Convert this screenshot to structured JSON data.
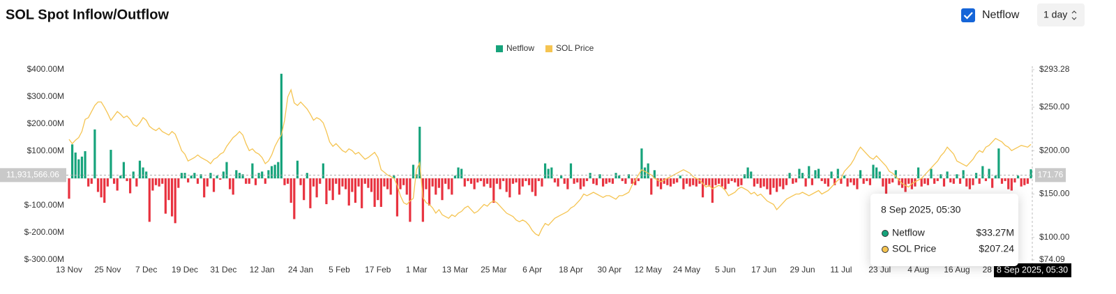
{
  "chart_data": {
    "type": "bar",
    "title": "SOL Spot Inflow/Outflow",
    "categories": [
      "13 Nov",
      null,
      null,
      null,
      null,
      null,
      null,
      null,
      null,
      null,
      null,
      null,
      "25 Nov",
      null,
      null,
      null,
      null,
      null,
      null,
      null,
      null,
      null,
      null,
      null,
      "7 Dec",
      null,
      null,
      null,
      null,
      null,
      null,
      null,
      null,
      null,
      null,
      null,
      "19 Dec",
      null,
      null,
      null,
      null,
      null,
      null,
      null,
      null,
      null,
      null,
      null,
      "31 Dec",
      null,
      null,
      null,
      null,
      null,
      null,
      null,
      null,
      null,
      null,
      null,
      "12 Jan",
      null,
      null,
      null,
      null,
      null,
      null,
      null,
      null,
      null,
      null,
      null,
      "24 Jan",
      null,
      null,
      null,
      null,
      null,
      null,
      null,
      null,
      null,
      null,
      null,
      "5 Feb",
      null,
      null,
      null,
      null,
      null,
      null,
      null,
      null,
      null,
      null,
      null,
      "17 Feb",
      null,
      null,
      null,
      null,
      null,
      null,
      null,
      null,
      null,
      null,
      null,
      "1 Mar",
      null,
      null,
      null,
      null,
      null,
      null,
      null,
      null,
      null,
      null,
      null,
      "13 Mar",
      null,
      null,
      null,
      null,
      null,
      null,
      null,
      null,
      null,
      null,
      null,
      "25 Mar",
      null,
      null,
      null,
      null,
      null,
      null,
      null,
      null,
      null,
      null,
      null,
      "6 Apr",
      null,
      null,
      null,
      null,
      null,
      null,
      null,
      null,
      null,
      null,
      null,
      "18 Apr",
      null,
      null,
      null,
      null,
      null,
      null,
      null,
      null,
      null,
      null,
      null,
      "30 Apr",
      null,
      null,
      null,
      null,
      null,
      null,
      null,
      null,
      null,
      null,
      null,
      "12 May",
      null,
      null,
      null,
      null,
      null,
      null,
      null,
      null,
      null,
      null,
      null,
      "24 May",
      null,
      null,
      null,
      null,
      null,
      null,
      null,
      null,
      null,
      null,
      null,
      "5 Jun",
      null,
      null,
      null,
      null,
      null,
      null,
      null,
      null,
      null,
      null,
      null,
      "17 Jun",
      null,
      null,
      null,
      null,
      null,
      null,
      null,
      null,
      null,
      null,
      null,
      "29 Jun",
      null,
      null,
      null,
      null,
      null,
      null,
      null,
      null,
      null,
      null,
      null,
      "11 Jul",
      null,
      null,
      null,
      null,
      null,
      null,
      null,
      null,
      null,
      null,
      null,
      "23 Jul",
      null,
      null,
      null,
      null,
      null,
      null,
      null,
      null,
      null,
      null,
      null,
      "4 Aug",
      null,
      null,
      null,
      null,
      null,
      null,
      null,
      null,
      null,
      null,
      null,
      "16 Aug",
      null,
      null,
      null,
      null,
      null,
      null,
      null,
      null,
      null,
      null,
      null,
      "28 Aug",
      null,
      null,
      null,
      null,
      null,
      null,
      null,
      null,
      null,
      null,
      null
    ],
    "series": [
      {
        "name": "Netflow",
        "type": "bar",
        "color": "#16a37b",
        "negative_color": "#e8323f",
        "values": [
          -75,
          125,
          95,
          70,
          80,
          100,
          -30,
          -20,
          180,
          -50,
          -70,
          -90,
          -30,
          105,
          -20,
          -45,
          10,
          60,
          -10,
          -55,
          25,
          -30,
          65,
          40,
          25,
          -160,
          -45,
          -25,
          -30,
          -20,
          -130,
          -80,
          -140,
          -165,
          -35,
          20,
          20,
          -15,
          10,
          20,
          -20,
          15,
          -70,
          -30,
          20,
          -50,
          10,
          -5,
          25,
          60,
          -40,
          -60,
          30,
          20,
          15,
          -20,
          -20,
          55,
          -25,
          20,
          25,
          -20,
          30,
          45,
          50,
          60,
          385,
          -25,
          -20,
          -90,
          -150,
          65,
          -25,
          -80,
          20,
          -110,
          -30,
          -70,
          -20,
          55,
          -95,
          -45,
          -80,
          -20,
          -60,
          -30,
          -40,
          -100,
          -50,
          -90,
          -30,
          -110,
          -20,
          -35,
          -50,
          -105,
          -80,
          -105,
          -30,
          -40,
          -60,
          10,
          -140,
          -40,
          -25,
          -60,
          -160,
          50,
          15,
          190,
          -160,
          -40,
          -100,
          -30,
          -60,
          -35,
          -80,
          -20,
          -40,
          -60,
          10,
          40,
          35,
          -30,
          -10,
          -20,
          -40,
          -15,
          -10,
          -30,
          -20,
          -35,
          -90,
          -20,
          -40,
          -10,
          -50,
          -70,
          -20,
          -15,
          -60,
          -30,
          -10,
          -25,
          -50,
          -65,
          -10,
          -30,
          55,
          35,
          40,
          -15,
          -30,
          10,
          -20,
          -40,
          55,
          -20,
          -15,
          -40,
          -30,
          -10,
          20,
          -20,
          -25,
          15,
          -30,
          -20,
          -15,
          -20,
          20,
          10,
          -10,
          -20,
          15,
          -20,
          -25,
          -10,
          110,
          40,
          55,
          -60,
          30,
          -30,
          -40,
          -20,
          -25,
          -30,
          -20,
          -15,
          10,
          -40,
          -20,
          -30,
          -25,
          -30,
          -20,
          -70,
          -25,
          -30,
          -90,
          -25,
          -20,
          -30,
          -40,
          -20,
          -10,
          -15,
          -30,
          -25,
          15,
          40,
          25,
          -30,
          -20,
          -35,
          -30,
          -40,
          -60,
          -35,
          -50,
          -30,
          -40,
          -25,
          20,
          -20,
          -15,
          35,
          20,
          -30,
          45,
          -25,
          30,
          35,
          -10,
          -20,
          -30,
          25,
          -25,
          35,
          -20,
          10,
          -30,
          -15,
          -25,
          -40,
          30,
          -20,
          -10,
          -25,
          50,
          40,
          25,
          -30,
          -60,
          -20,
          -15,
          30,
          -25,
          -35,
          -50,
          -20,
          -40,
          -30,
          40,
          -30,
          -20,
          -25,
          35,
          -20,
          -10,
          15,
          -30,
          25,
          -15,
          -20,
          15,
          -20,
          30,
          -30,
          -40,
          -25,
          20,
          -20,
          45,
          -10,
          35,
          -35,
          10,
          110,
          -20,
          -10,
          -40,
          -45,
          -15,
          10,
          -30,
          -25,
          -20,
          33.27
        ]
      },
      {
        "name": "SOL Price",
        "type": "line",
        "axis": "y2",
        "color": "#f5c451",
        "values": [
          213,
          208,
          212,
          215,
          222,
          236,
          238,
          245,
          252,
          256,
          256,
          250,
          243,
          235,
          240,
          245,
          242,
          238,
          240,
          236,
          230,
          228,
          232,
          238,
          235,
          228,
          225,
          223,
          226,
          222,
          220,
          218,
          222,
          219,
          210,
          200,
          196,
          188,
          190,
          192,
          195,
          192,
          190,
          188,
          185,
          190,
          192,
          196,
          198,
          205,
          210,
          215,
          218,
          222,
          218,
          208,
          200,
          202,
          198,
          196,
          192,
          185,
          188,
          195,
          205,
          212,
          218,
          235,
          262,
          270,
          255,
          252,
          256,
          252,
          248,
          242,
          235,
          238,
          236,
          232,
          222,
          210,
          205,
          208,
          204,
          200,
          198,
          202,
          200,
          196,
          198,
          194,
          190,
          192,
          195,
          198,
          192,
          178,
          175,
          172,
          170,
          168,
          160,
          148,
          140,
          138,
          142,
          145,
          178,
          186,
          146,
          140,
          138,
          134,
          128,
          132,
          126,
          124,
          122,
          126,
          124,
          128,
          130,
          134,
          136,
          132,
          128,
          130,
          134,
          138,
          136,
          140,
          142,
          140,
          136,
          132,
          128,
          126,
          124,
          120,
          118,
          120,
          118,
          114,
          108,
          104,
          102,
          110,
          116,
          114,
          118,
          122,
          124,
          126,
          128,
          130,
          134,
          136,
          140,
          144,
          150,
          148,
          150,
          152,
          150,
          148,
          146,
          148,
          148,
          146,
          144,
          148,
          148,
          150,
          152,
          160,
          166,
          172,
          178,
          176,
          174,
          172,
          168,
          166,
          164,
          166,
          168,
          170,
          172,
          174,
          176,
          178,
          176,
          174,
          170,
          168,
          166,
          162,
          158,
          160,
          156,
          158,
          160,
          158,
          154,
          148,
          150,
          152,
          156,
          158,
          156,
          154,
          150,
          152,
          148,
          150,
          146,
          142,
          140,
          138,
          132,
          136,
          140,
          144,
          146,
          148,
          150,
          150,
          152,
          150,
          148,
          150,
          152,
          154,
          150,
          152,
          154,
          158,
          162,
          166,
          168,
          176,
          180,
          184,
          190,
          198,
          204,
          200,
          196,
          192,
          190,
          194,
          190,
          186,
          182,
          176,
          174,
          170,
          166,
          162,
          160,
          158,
          162,
          164,
          166,
          168,
          172,
          176,
          180,
          184,
          188,
          194,
          198,
          204,
          200,
          196,
          188,
          186,
          184,
          182,
          186,
          190,
          196,
          200,
          198,
          204,
          206,
          210,
          214,
          212,
          210,
          206,
          204,
          200,
          202,
          204,
          206,
          205,
          204,
          207.24
        ]
      }
    ],
    "ylim": [
      -300,
      400
    ],
    "yticks": [
      {
        "value": 400,
        "label": "$400.00M"
      },
      {
        "value": 300,
        "label": "$300.00M"
      },
      {
        "value": 200,
        "label": "$200.00M"
      },
      {
        "value": 100,
        "label": "$100.00M"
      },
      {
        "value": -100,
        "label": "$-100.00M"
      },
      {
        "value": -200,
        "label": "$-200.00M"
      },
      {
        "value": -300,
        "label": "$-300.00M"
      }
    ],
    "y2lim": [
      74.09,
      293.28
    ],
    "y2ticks": [
      {
        "value": 293.28,
        "label": "$293.28"
      },
      {
        "value": 250,
        "label": "$250.00"
      },
      {
        "value": 200,
        "label": "$200.00"
      },
      {
        "value": 150,
        "label": "$150.00"
      },
      {
        "value": 100,
        "label": "$100.00"
      },
      {
        "value": 74.09,
        "label": "$74.09"
      }
    ],
    "grid": false,
    "legend": "top",
    "crosshair": {
      "y": {
        "value": 11.93156606,
        "label": "11,931,566.06"
      },
      "y2": 171.76
    },
    "tooltip": {
      "title": "8 Sep 2025, 05:30",
      "rows": [
        {
          "name": "Netflow",
          "value": 33.27,
          "label": "$33.27M"
        },
        {
          "name": "SOL Price",
          "value": 207.24,
          "label": "$207.24"
        }
      ]
    }
  },
  "controls": {
    "toggle_label": "Netflow",
    "interval": "1 day"
  }
}
